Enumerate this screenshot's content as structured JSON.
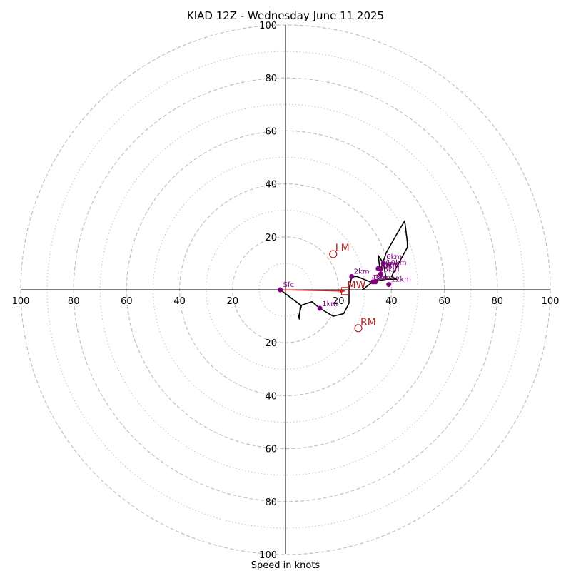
{
  "chart_data": {
    "type": "hodograph",
    "title": "KIAD 12Z - Wednesday June 11 2025",
    "xlabel": "Speed in knots",
    "ylabel": "",
    "range": 100,
    "ring_major": [
      20,
      40,
      60,
      80,
      100
    ],
    "ring_minor": [
      10,
      30,
      50,
      70,
      90
    ],
    "tick_labels": [
      "20",
      "40",
      "60",
      "80",
      "100"
    ],
    "grid": true,
    "colors": {
      "trace": "#000000",
      "height_marker": "#800080",
      "storm_motion": "#b22222",
      "mean_wind_vector": "#d62020",
      "ring": "#c0c0c0"
    },
    "trace": [
      [
        -2.0,
        0.0
      ],
      [
        6.0,
        -6.0
      ],
      [
        5.0,
        -10.0
      ],
      [
        5.2,
        -11.0
      ],
      [
        5.6,
        -6.0
      ],
      [
        10.0,
        -4.5
      ],
      [
        13.0,
        -7.0
      ],
      [
        18.0,
        -10.0
      ],
      [
        22.0,
        -9.0
      ],
      [
        24.0,
        -5.0
      ],
      [
        24.0,
        0.0
      ],
      [
        25.0,
        5.0
      ],
      [
        27.0,
        5.0
      ],
      [
        32.0,
        3.0
      ],
      [
        34.0,
        3.0
      ],
      [
        36.0,
        5.0
      ],
      [
        35.0,
        13.0
      ],
      [
        37.0,
        10.0
      ],
      [
        38.0,
        4.0
      ],
      [
        33.0,
        3.0
      ],
      [
        29.0,
        0.0
      ],
      [
        33.0,
        3.0
      ],
      [
        38.0,
        4.0
      ],
      [
        42.0,
        4.0
      ],
      [
        40.0,
        5.0
      ],
      [
        46.0,
        16.0
      ],
      [
        46.0,
        18.0
      ],
      [
        45.0,
        26.0
      ],
      [
        42.0,
        21.0
      ],
      [
        38.0,
        14.0
      ],
      [
        36.0,
        8.0
      ]
    ],
    "height_markers": [
      {
        "label": "Sfc",
        "u": -2.0,
        "v": 0.0
      },
      {
        "label": "1km",
        "u": 13.0,
        "v": -7.0
      },
      {
        "label": "2km",
        "u": 25.0,
        "v": 5.0
      },
      {
        "label": "3km",
        "u": 34.0,
        "v": 3.0
      },
      {
        "label": "4km",
        "u": 33.0,
        "v": 3.0
      },
      {
        "label": "5km",
        "u": 36.0,
        "v": 6.0
      },
      {
        "label": "6km",
        "u": 37.0,
        "v": 10.0
      },
      {
        "label": "7km",
        "u": 35.0,
        "v": 8.0
      },
      {
        "label": "8km",
        "u": 36.0,
        "v": 6.0
      },
      {
        "label": "9km",
        "u": 36.0,
        "v": 8.0
      },
      {
        "label": "10km",
        "u": 37.0,
        "v": 10.0
      },
      {
        "label": "12km",
        "u": 39.0,
        "v": 2.0
      }
    ],
    "storm_motion": [
      {
        "label": "LM",
        "u": 18.0,
        "v": 13.5,
        "shape": "circle"
      },
      {
        "label": "RM",
        "u": 27.5,
        "v": -14.5,
        "shape": "circle"
      },
      {
        "label": "MW",
        "u": 22.5,
        "v": -0.5,
        "shape": "square"
      }
    ],
    "mean_wind_vector": {
      "from": [
        -2.0,
        0.0
      ],
      "to": [
        22.5,
        -0.5
      ]
    }
  }
}
